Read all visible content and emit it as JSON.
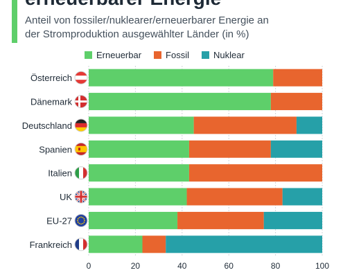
{
  "header": {
    "title": "erneuerbarer Energie",
    "subtitle_line1": "Anteil von fossiler/nuklearer/erneuerbarer Energie an",
    "subtitle_line2": "der Stromproduktion ausgewählter Länder (in %)"
  },
  "colors": {
    "accent": "#5ecf6a",
    "erneuerbar": "#5ecf6a",
    "fossil": "#e8652e",
    "nuklear": "#26a0a8"
  },
  "chart_data": {
    "type": "bar",
    "orientation": "horizontal",
    "stacked": true,
    "categories": [
      "Österreich",
      "Dänemark",
      "Deutschland",
      "Spanien",
      "Italien",
      "UK",
      "EU-27",
      "Frankreich"
    ],
    "flag_icons": [
      "austria-flag-icon",
      "denmark-flag-icon",
      "germany-flag-icon",
      "spain-flag-icon",
      "italy-flag-icon",
      "uk-flag-icon",
      "eu-flag-icon",
      "france-flag-icon"
    ],
    "series": [
      {
        "name": "Erneuerbar",
        "values": [
          79,
          78,
          45,
          43,
          43,
          42,
          38,
          23
        ]
      },
      {
        "name": "Fossil",
        "values": [
          21,
          22,
          44,
          35,
          57,
          41,
          37,
          10
        ]
      },
      {
        "name": "Nuklear",
        "values": [
          0,
          0,
          11,
          22,
          0,
          17,
          25,
          67
        ]
      }
    ],
    "xlim": [
      0,
      100
    ],
    "xticks": [
      "0",
      "20",
      "40",
      "60",
      "80",
      "100"
    ],
    "grid": true,
    "legend": "top-center"
  }
}
